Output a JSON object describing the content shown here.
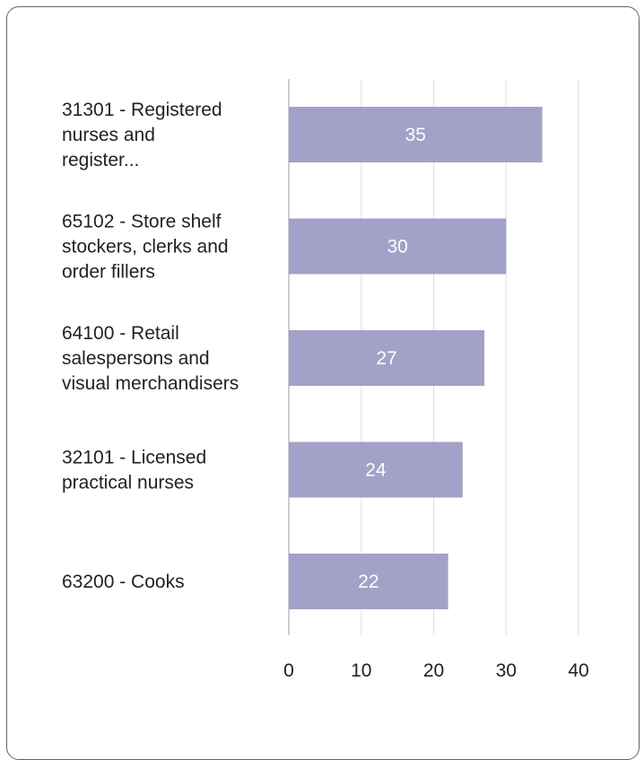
{
  "chart_data": {
    "type": "bar",
    "orientation": "horizontal",
    "categories": [
      [
        "31301 - Registered",
        "nurses and",
        "register..."
      ],
      [
        "65102 - Store shelf",
        "stockers, clerks and",
        "order fillers"
      ],
      [
        "64100 - Retail",
        "salespersons and",
        "visual merchandisers"
      ],
      [
        "32101 - Licensed",
        "practical nurses"
      ],
      [
        "63200 - Cooks"
      ]
    ],
    "values": [
      35,
      30,
      27,
      24,
      22
    ],
    "data_labels": [
      "35",
      "30",
      "27",
      "24",
      "22"
    ],
    "xlim": [
      0,
      40
    ],
    "ticks": [
      0,
      10,
      20,
      30,
      40
    ],
    "tick_labels": [
      "0",
      "10",
      "20",
      "30",
      "40"
    ],
    "grid": true,
    "title": "",
    "xlabel": "",
    "ylabel": "",
    "colors": {
      "bar": "#a2a1c7",
      "grid": "#e0e0e0",
      "baseline": "#9e9e9e",
      "label_text": "#222222",
      "data_label": "#ffffff"
    }
  }
}
